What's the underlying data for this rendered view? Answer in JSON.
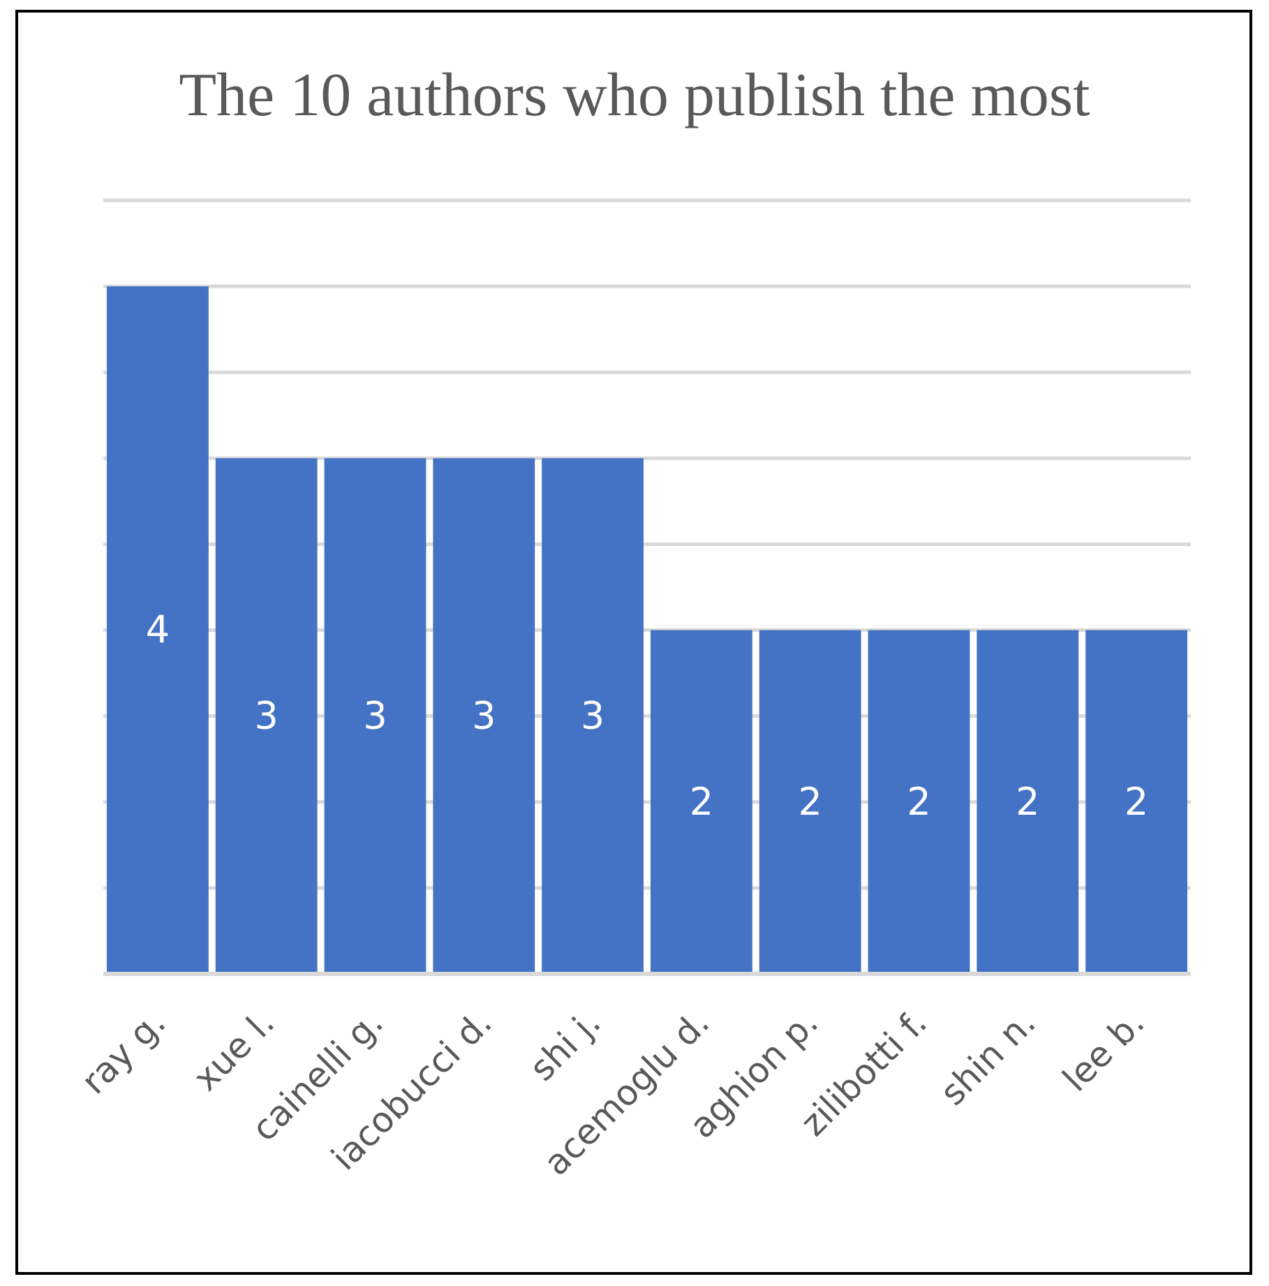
{
  "chart_data": {
    "type": "bar",
    "title": "The 10 authors who publish the most",
    "xlabel": "",
    "ylabel": "",
    "categories": [
      "ray g.",
      "xue l.",
      "cainelli g.",
      "iacobucci d.",
      "shi j.",
      "acemoglu d.",
      "aghion p.",
      "zilibotti f.",
      "shin n.",
      "lee b."
    ],
    "values": [
      4,
      3,
      3,
      3,
      3,
      2,
      2,
      2,
      2,
      2
    ],
    "data_labels": [
      "4",
      "3",
      "3",
      "3",
      "3",
      "2",
      "2",
      "2",
      "2",
      "2"
    ],
    "ylim": [
      0,
      4.5
    ],
    "grid_step": 0.5,
    "grid": true,
    "legend": "none",
    "bar_color": "#4472C4",
    "grid_color": "#D9D9D9",
    "text_color": "#595959"
  }
}
